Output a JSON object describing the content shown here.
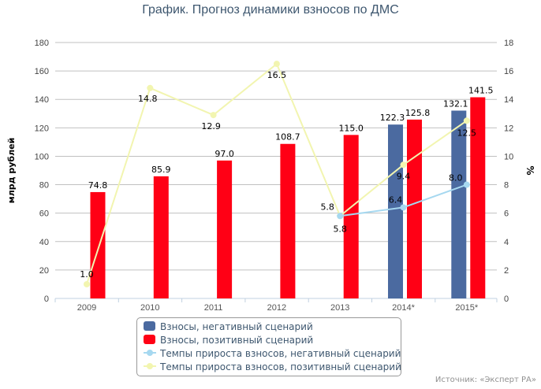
{
  "chart_data": {
    "type": "bar+line",
    "title": "График. Прогноз динамики взносов по ДМС",
    "categories": [
      "2009",
      "2010",
      "2011",
      "2012",
      "2013",
      "2014*",
      "2015*"
    ],
    "ylabel": "млрд рублей",
    "ylabel_right": "%",
    "ylim": [
      0,
      180
    ],
    "ylim_right": [
      0,
      18
    ],
    "yticks": [
      0,
      20,
      40,
      60,
      80,
      100,
      120,
      140,
      160,
      180
    ],
    "yticks_right": [
      0,
      2,
      4,
      6,
      8,
      10,
      12,
      14,
      16,
      18
    ],
    "grid": true,
    "legend": "bottom",
    "series": [
      {
        "name": "Взносы, негативный сценарий",
        "type": "bar",
        "axis": "left",
        "color": "#4b6aa0",
        "values": [
          null,
          null,
          null,
          null,
          null,
          122.3,
          132.1
        ],
        "labels": [
          "",
          "",
          "",
          "",
          "",
          "122.3",
          "132.1"
        ]
      },
      {
        "name": "Взносы, позитивный сценарий",
        "type": "bar",
        "axis": "left",
        "color": "#ff0015",
        "values": [
          74.8,
          85.9,
          97.0,
          108.7,
          115.0,
          125.8,
          141.5
        ],
        "labels": [
          "74.8",
          "85.9",
          "97.0",
          "108.7",
          "115.0",
          "125.8",
          "141.5"
        ]
      },
      {
        "name": "Темпы прироста взносов, негативный сценарий",
        "type": "line",
        "axis": "right",
        "color": "#a6d8f0",
        "values": [
          null,
          null,
          null,
          null,
          5.8,
          6.4,
          8.0
        ],
        "labels": [
          "",
          "",
          "",
          "",
          "5.8",
          "6.4",
          "8.0"
        ]
      },
      {
        "name": "Темпы прироста взносов, позитивный сценарий",
        "type": "line",
        "axis": "right",
        "color": "#f2f5b0",
        "values": [
          1.0,
          14.8,
          12.9,
          16.5,
          5.8,
          9.4,
          12.5
        ],
        "labels": [
          "1.0",
          "14.8",
          "12.9",
          "16.5",
          "5.8",
          "9.4",
          "12.5"
        ]
      }
    ]
  },
  "source": "Источник: «Эксперт РА»"
}
